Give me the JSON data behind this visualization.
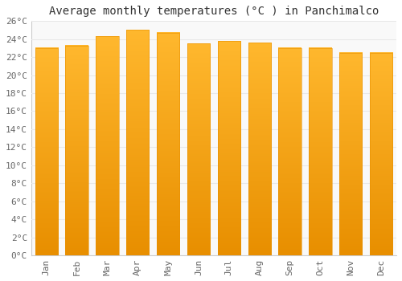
{
  "title": "Average monthly temperatures (°C ) in Panchimalco",
  "months": [
    "Jan",
    "Feb",
    "Mar",
    "Apr",
    "May",
    "Jun",
    "Jul",
    "Aug",
    "Sep",
    "Oct",
    "Nov",
    "Dec"
  ],
  "values": [
    23.0,
    23.3,
    24.3,
    25.0,
    24.7,
    23.5,
    23.8,
    23.6,
    23.0,
    23.0,
    22.5,
    22.5
  ],
  "bar_color": "#FFA500",
  "bar_edge_color": "#E89000",
  "ylim": [
    0,
    26
  ],
  "ytick_step": 2,
  "background_color": "#ffffff",
  "plot_bg_color": "#f9f9f9",
  "grid_color": "#e8e8e8",
  "title_fontsize": 10,
  "tick_fontsize": 8,
  "font_family": "monospace"
}
